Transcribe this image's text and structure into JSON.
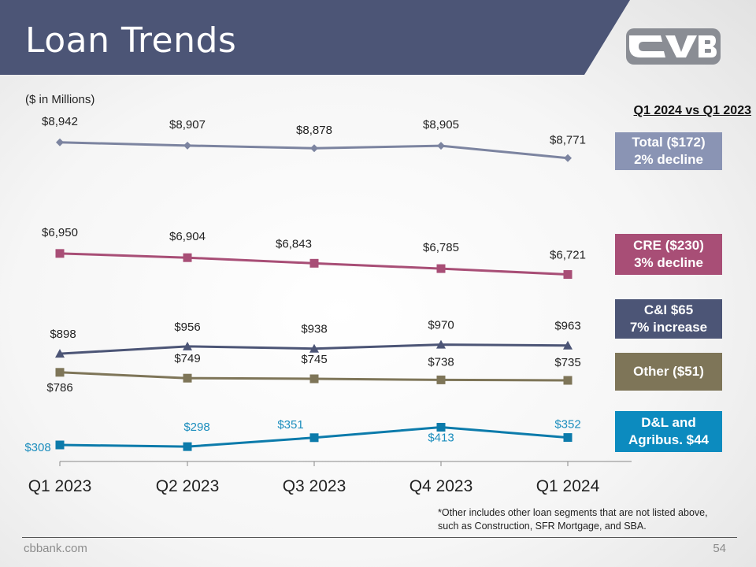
{
  "slide": {
    "title": "Loan Trends",
    "units_note": "($ in Millions)",
    "compare_title": "Q1 2024 vs Q1 2023",
    "footnote_line1": "*Other includes other loan segments that are not listed above,",
    "footnote_line2": "such as Construction, SFR Mortgage, and SBA.",
    "site": "cbbank.com",
    "page_number": "54",
    "logo": "cvb-logo",
    "colors": {
      "header": "#4c5576",
      "logo": "#8a8d94"
    }
  },
  "callouts": {
    "total": {
      "line1": "Total ($172)",
      "line2": "2% decline",
      "color": "#8a94b4"
    },
    "cre": {
      "line1": "CRE ($230)",
      "line2": "3% decline",
      "color": "#a84e76"
    },
    "ci": {
      "line1": "C&I $65",
      "line2": "7% increase",
      "color": "#4c5576"
    },
    "other": {
      "line1": "Other ($51)",
      "line2": "",
      "color": "#7e7558"
    },
    "dl": {
      "line1": "D&L and",
      "line2": "Agribus. $44",
      "color": "#0c8bbf"
    }
  },
  "chart_data": {
    "type": "line",
    "categories": [
      "Q1 2023",
      "Q2 2023",
      "Q3 2023",
      "Q4 2023",
      "Q1 2024"
    ],
    "series": [
      {
        "key": "total",
        "values": [
          8942,
          8907,
          8878,
          8905,
          8771
        ],
        "labels": [
          "$8,942",
          "$8,907",
          "$8,878",
          "$8,905",
          "$8,771"
        ],
        "marker": "diamond",
        "color": "#7c84a0",
        "label_color": "#222222"
      },
      {
        "key": "cre",
        "values": [
          6950,
          6904,
          6843,
          6785,
          6721
        ],
        "labels": [
          "$6,950",
          "$6,904",
          "$6,843",
          "$6,785",
          "$6,721"
        ],
        "marker": "square",
        "color": "#a84e76",
        "label_color": "#222222"
      },
      {
        "key": "ci",
        "values": [
          898,
          956,
          938,
          970,
          963
        ],
        "labels": [
          "$898",
          "$956",
          "$938",
          "$970",
          "$963"
        ],
        "marker": "triangle",
        "color": "#4c5576",
        "label_color": "#222222"
      },
      {
        "key": "other",
        "values": [
          786,
          749,
          745,
          738,
          735
        ],
        "labels": [
          "$786",
          "$749",
          "$745",
          "$738",
          "$735"
        ],
        "marker": "square",
        "color": "#7e7558",
        "label_color": "#222222"
      },
      {
        "key": "dl",
        "values": [
          308,
          298,
          351,
          413,
          352
        ],
        "labels": [
          "$308",
          "$298",
          "$351",
          "$413",
          "$352"
        ],
        "marker": "square",
        "color": "#0c7bab",
        "label_color": "#1b8dbd"
      }
    ],
    "grid": false,
    "legend": "none"
  }
}
